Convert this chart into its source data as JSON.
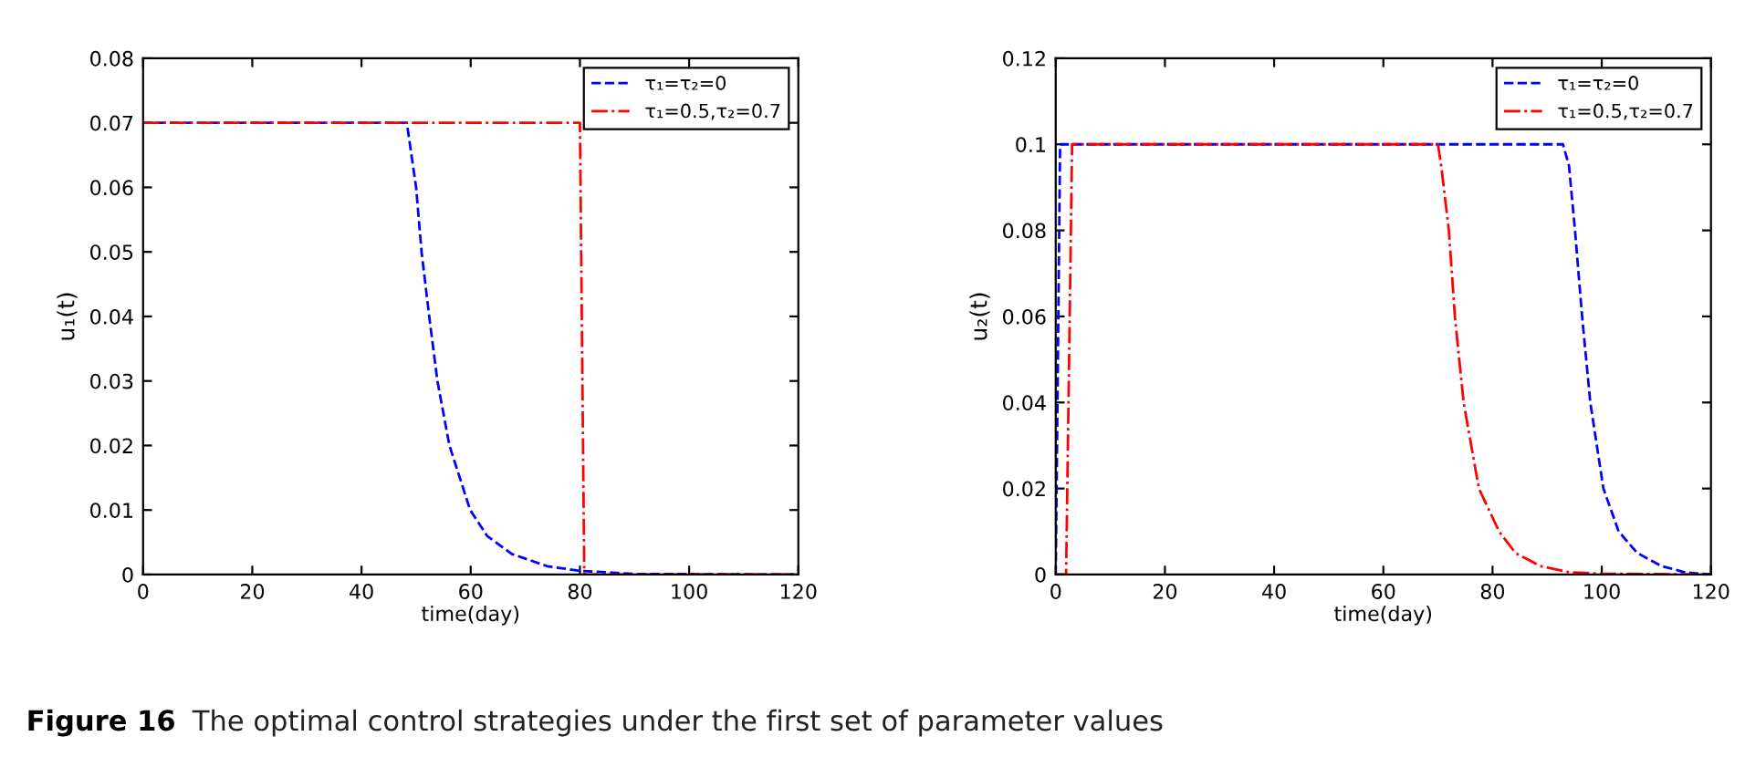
{
  "chart_data": [
    {
      "type": "line",
      "xlabel": "time(day)",
      "ylabel": "u₁(t)",
      "xlim": [
        0,
        120
      ],
      "ylim": [
        0,
        0.08
      ],
      "xticks": [
        0,
        20,
        40,
        60,
        80,
        100,
        120
      ],
      "yticks": [
        0,
        0.01,
        0.02,
        0.03,
        0.04,
        0.05,
        0.06,
        0.07,
        0.08
      ],
      "grid": false,
      "legend": "top right",
      "marker": "none",
      "series": [
        {
          "name": "τ₁=τ₂=0",
          "color": "#0000ff",
          "line_style": "dashed",
          "x": [
            0,
            48.3,
            50.0,
            51,
            52.4,
            53.9,
            56.1,
            59.9,
            63,
            67.5,
            74,
            79.7,
            90,
            120
          ],
          "values": [
            0.07,
            0.07,
            0.06,
            0.05,
            0.04,
            0.03,
            0.02,
            0.01,
            0.006,
            0.0032,
            0.0013,
            0.0006,
            0.0001,
            0
          ]
        },
        {
          "name": "τ₁=0.5,τ₂=0.7",
          "color": "#ff0000",
          "line_style": "dashdot",
          "x": [
            0,
            80,
            80.8,
            120
          ],
          "values": [
            0.07,
            0.07,
            0,
            0
          ]
        }
      ],
      "annotations": [
        "Figure 16",
        "The optimal control strategies under the first set of parameter values"
      ]
    },
    {
      "type": "line",
      "xlabel": "time(day)",
      "ylabel": "u₂(t)",
      "xlim": [
        0,
        120
      ],
      "ylim": [
        0,
        0.12
      ],
      "xticks": [
        0,
        20,
        40,
        60,
        80,
        100,
        120
      ],
      "yticks": [
        0,
        0.02,
        0.04,
        0.06,
        0.08,
        0.1,
        0.12
      ],
      "grid": false,
      "legend": "top right",
      "marker": "none",
      "series": [
        {
          "name": "τ₁=τ₂=0",
          "color": "#0000ff",
          "line_style": "dashed",
          "x": [
            0,
            0.8,
            92.9,
            94,
            95.1,
            96.4,
            97.9,
            100.3,
            103.1,
            106.5,
            110.9,
            115.3,
            120
          ],
          "values": [
            0,
            0.1,
            0.1,
            0.095,
            0.08,
            0.06,
            0.04,
            0.02,
            0.01,
            0.005,
            0.002,
            0.0005,
            0
          ]
        },
        {
          "name": "τ₁=0.5,τ₂=0.7",
          "color": "#ff0000",
          "line_style": "dashdot",
          "x": [
            0,
            1.9,
            3.0,
            70,
            70.6,
            72,
            73.1,
            74.7,
            77.5,
            81.2,
            84.2,
            88.7,
            94.2,
            99.7,
            120
          ],
          "values": [
            0,
            0,
            0.1,
            0.1,
            0.095,
            0.08,
            0.06,
            0.04,
            0.02,
            0.01,
            0.005,
            0.002,
            0.0005,
            0.0002,
            0
          ]
        }
      ]
    }
  ]
}
